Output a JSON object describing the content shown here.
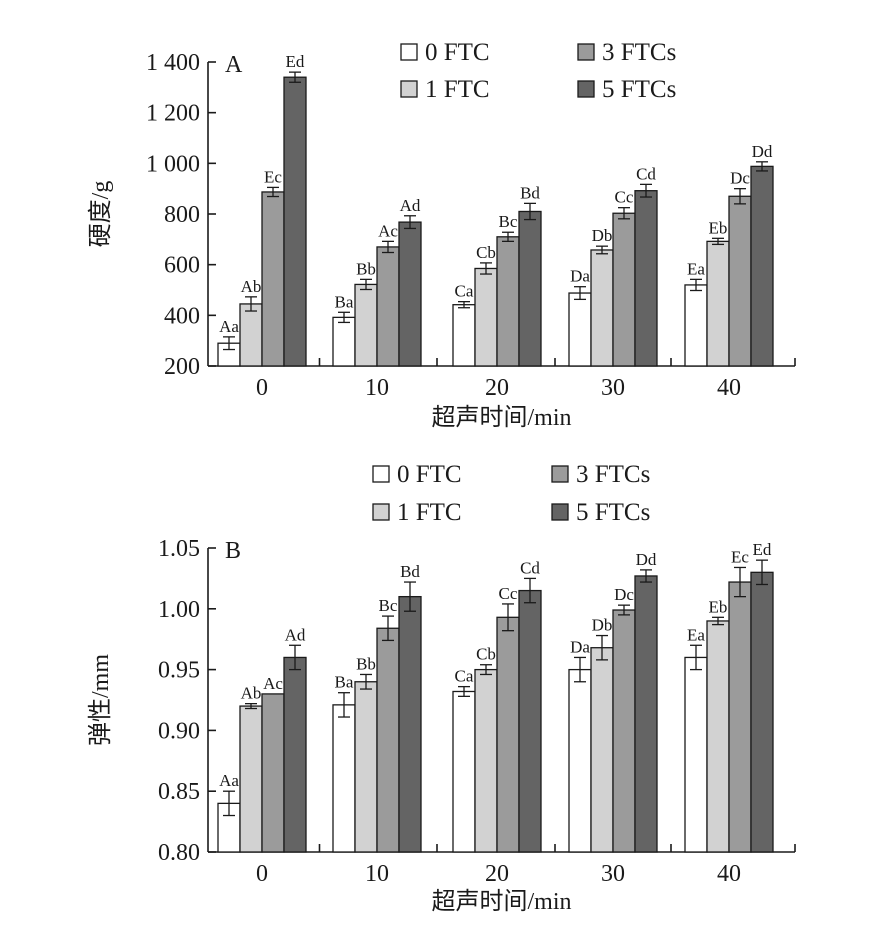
{
  "colors": {
    "series": [
      "#ffffff",
      "#d2d2d2",
      "#9b9b9b",
      "#646464"
    ],
    "ink": "#1a1a1a"
  },
  "chart_data": [
    {
      "type": "bar",
      "panel_label": "A",
      "categories": [
        "0",
        "10",
        "20",
        "30",
        "40"
      ],
      "xlabel": "超声时间/min",
      "ylabel": "硬度/g",
      "ylim": [
        200,
        1400
      ],
      "yticks": [
        200,
        400,
        600,
        800,
        1000,
        1200,
        1400
      ],
      "ytick_labels": [
        "200",
        "400",
        "600",
        "800",
        "1 000",
        "1 200",
        "1 400"
      ],
      "legend_position": "top-right",
      "grid": false,
      "series": [
        {
          "name": "0 FTC",
          "values": [
            290,
            392,
            442,
            488,
            520
          ],
          "errors": [
            25,
            20,
            12,
            25,
            22
          ],
          "labels": [
            "Aa",
            "Ba",
            "Ca",
            "Da",
            "Ea"
          ]
        },
        {
          "name": "1 FTC",
          "values": [
            445,
            522,
            585,
            658,
            692
          ],
          "errors": [
            28,
            20,
            22,
            15,
            12
          ],
          "labels": [
            "Ab",
            "Bb",
            "Cb",
            "Db",
            "Eb"
          ]
        },
        {
          "name": "3 FTCs",
          "values": [
            887,
            670,
            710,
            803,
            870
          ],
          "errors": [
            18,
            22,
            18,
            22,
            30
          ],
          "labels": [
            "Ec",
            "Ac",
            "Bc",
            "Cc",
            "Dc"
          ]
        },
        {
          "name": "5 FTCs",
          "values": [
            1340,
            768,
            810,
            892,
            988
          ],
          "errors": [
            20,
            25,
            32,
            25,
            18
          ],
          "labels": [
            "Ed",
            "Ad",
            "Bd",
            "Cd",
            "Dd"
          ]
        }
      ]
    },
    {
      "type": "bar",
      "panel_label": "B",
      "categories": [
        "0",
        "10",
        "20",
        "30",
        "40"
      ],
      "xlabel": "超声时间/min",
      "ylabel": "弹性/mm",
      "ylim": [
        0.8,
        1.05
      ],
      "yticks": [
        0.8,
        0.85,
        0.9,
        0.95,
        1.0,
        1.05
      ],
      "ytick_labels": [
        "0.80",
        "0.85",
        "0.90",
        "0.95",
        "1.00",
        "1.05"
      ],
      "legend_position": "top-right",
      "grid": false,
      "series": [
        {
          "name": "0 FTC",
          "values": [
            0.84,
            0.921,
            0.932,
            0.95,
            0.96
          ],
          "errors": [
            0.01,
            0.01,
            0.004,
            0.01,
            0.01
          ],
          "labels": [
            "Aa",
            "Ba",
            "Ca",
            "Da",
            "Ea"
          ]
        },
        {
          "name": "1 FTC",
          "values": [
            0.92,
            0.94,
            0.95,
            0.968,
            0.99
          ],
          "errors": [
            0.002,
            0.006,
            0.004,
            0.01,
            0.003
          ],
          "labels": [
            "Ab",
            "Bb",
            "Cb",
            "Db",
            "Eb"
          ]
        },
        {
          "name": "3 FTCs",
          "values": [
            0.93,
            0.984,
            0.993,
            0.999,
            1.022
          ],
          "errors": [
            0.0,
            0.01,
            0.011,
            0.004,
            0.012
          ],
          "labels": [
            "Ac",
            "Bc",
            "Cc",
            "Dc",
            "Ec"
          ]
        },
        {
          "name": "5 FTCs",
          "values": [
            0.96,
            1.01,
            1.015,
            1.027,
            1.03
          ],
          "errors": [
            0.01,
            0.012,
            0.01,
            0.005,
            0.01
          ],
          "labels": [
            "Ad",
            "Bd",
            "Cd",
            "Dd",
            "Ed"
          ]
        }
      ]
    }
  ]
}
